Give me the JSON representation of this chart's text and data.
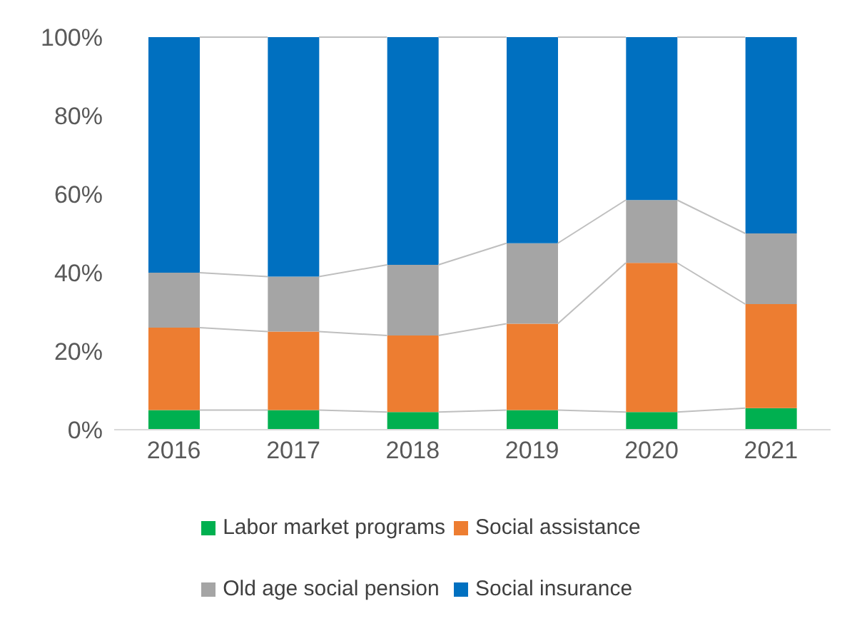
{
  "chart_data": {
    "type": "bar",
    "stacked": true,
    "categories": [
      "2016",
      "2017",
      "2018",
      "2019",
      "2020",
      "2021"
    ],
    "series": [
      {
        "name": "Labor market programs",
        "color": "#00b050",
        "values": [
          5,
          5,
          4.5,
          5,
          4.5,
          5.5
        ]
      },
      {
        "name": "Social assistance",
        "color": "#ed7d31",
        "values": [
          21,
          20,
          19.5,
          22,
          38,
          26.5
        ]
      },
      {
        "name": "Old age social pension",
        "color": "#a5a5a5",
        "values": [
          14,
          14,
          18,
          20.5,
          16,
          18
        ]
      },
      {
        "name": "Social insurance",
        "color": "#0070c0",
        "values": [
          60,
          61,
          58,
          52.5,
          41.5,
          50
        ]
      }
    ],
    "ylim": [
      0,
      100
    ],
    "yticks": [
      {
        "value": 0,
        "label": "0%"
      },
      {
        "value": 20,
        "label": "20%"
      },
      {
        "value": 40,
        "label": "40%"
      },
      {
        "value": 60,
        "label": "60%"
      },
      {
        "value": 80,
        "label": "80%"
      },
      {
        "value": 100,
        "label": "100%"
      }
    ],
    "grid": false,
    "legend": "bottom"
  }
}
